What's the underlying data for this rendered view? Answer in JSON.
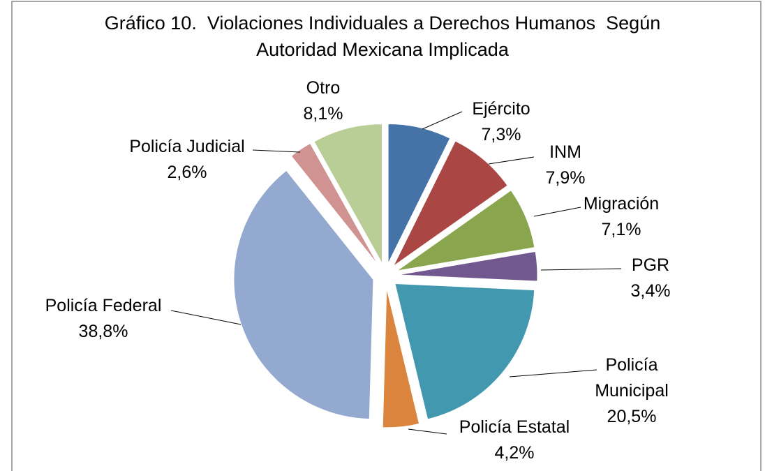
{
  "chart_data": {
    "type": "pie",
    "title": "Gráfico 10.  Violaciones Individuales a Derechos Humanos  Según Autoridad Mexicana Implicada",
    "categories": [
      "Ejército",
      "INM",
      "Migración",
      "PGR",
      "Policía Municipal",
      "Policía Estatal",
      "Policía Federal",
      "Policía Judicial",
      "Otro"
    ],
    "values": [
      7.3,
      7.9,
      7.1,
      3.4,
      20.5,
      4.2,
      38.8,
      2.6,
      8.1
    ],
    "value_labels": [
      "7,3%",
      "7,9%",
      "7,1%",
      "3,4%",
      "20,5%",
      "4,2%",
      "38,8%",
      "2,6%",
      "8,1%"
    ],
    "colors": [
      "#4572a7",
      "#aa4643",
      "#89a54e",
      "#71588f",
      "#4198af",
      "#db843d",
      "#93a9cf",
      "#d19392",
      "#b9cd96"
    ]
  }
}
